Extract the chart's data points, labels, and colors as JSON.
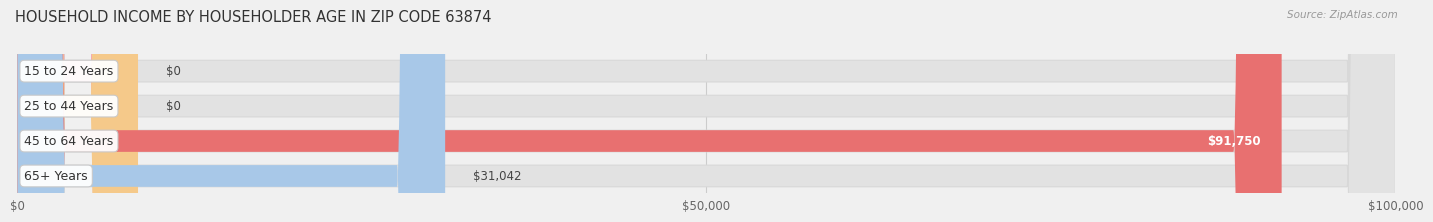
{
  "title": "HOUSEHOLD INCOME BY HOUSEHOLDER AGE IN ZIP CODE 63874",
  "source": "Source: ZipAtlas.com",
  "categories": [
    "15 to 24 Years",
    "25 to 44 Years",
    "45 to 64 Years",
    "65+ Years"
  ],
  "values": [
    0,
    0,
    91750,
    31042
  ],
  "bar_colors": [
    "#f4a0b0",
    "#f5c98a",
    "#e87070",
    "#a8c8e8"
  ],
  "value_labels": [
    "$0",
    "$0",
    "$91,750",
    "$31,042"
  ],
  "value_label_inside": [
    false,
    false,
    true,
    false
  ],
  "xlim_max": 100000,
  "xticks": [
    0,
    50000,
    100000
  ],
  "xtick_labels": [
    "$0",
    "$50,000",
    "$100,000"
  ],
  "background_color": "#f0f0f0",
  "bar_bg_color": "#e2e2e2",
  "bar_bg_edge_color": "#d8d8d8",
  "title_fontsize": 10.5,
  "label_fontsize": 9,
  "value_fontsize": 8.5
}
